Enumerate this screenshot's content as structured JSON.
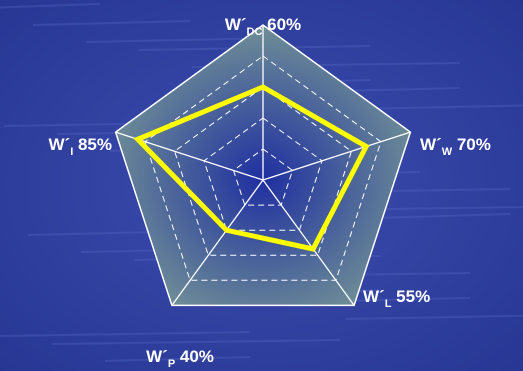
{
  "chart_data": {
    "type": "radar",
    "title": "",
    "rmax": 100,
    "rings": 5,
    "axes": [
      {
        "base": "W´",
        "sub": "DC",
        "pct": "60%",
        "value": 60
      },
      {
        "base": "W´",
        "sub": "W",
        "pct": "70%",
        "value": 70
      },
      {
        "base": "W´",
        "sub": "L",
        "pct": "55%",
        "value": 55
      },
      {
        "base": "W´",
        "sub": "P",
        "pct": "40%",
        "value": 40
      },
      {
        "base": "W´",
        "sub": "I",
        "pct": "85%",
        "value": 85
      }
    ],
    "colors": {
      "background": "#2f3f9c",
      "plot_fill": "#6f8f96",
      "plot_center": "#1f2fa0",
      "grid": "#ffffff",
      "series": "#ffff00"
    }
  }
}
